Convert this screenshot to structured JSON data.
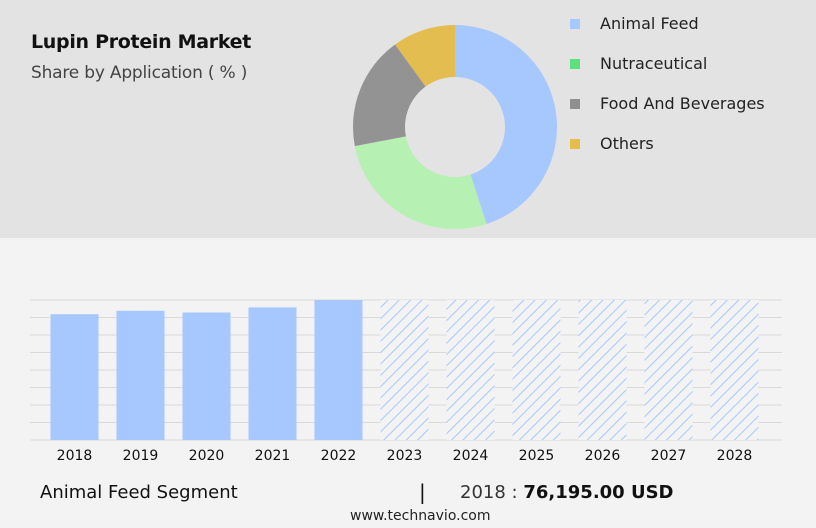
{
  "header": {
    "title": "Lupin Protein Market",
    "subtitle": "Share by Application ( % )"
  },
  "chart_data": [
    {
      "type": "pie",
      "style": "donut",
      "categories": [
        "Animal Feed",
        "Nutraceutical",
        "Food And Beverages",
        "Others"
      ],
      "values": [
        45,
        27,
        18,
        10
      ],
      "colors": [
        "#a7c7ff",
        "#b7f0b3",
        "#939393",
        "#e3bd4f"
      ],
      "legend_colors": [
        "#a7c7ff",
        "#5ee07e",
        "#8f8f8f",
        "#e6bd4a"
      ],
      "legend": "right"
    },
    {
      "type": "bar",
      "categories": [
        "2018",
        "2019",
        "2020",
        "2021",
        "2022",
        "2023",
        "2024",
        "2025",
        "2026",
        "2027",
        "2028"
      ],
      "values": [
        74,
        76,
        75,
        78,
        83,
        null,
        null,
        null,
        null,
        null,
        null
      ],
      "forecast_categories": [
        "2023",
        "2024",
        "2025",
        "2026",
        "2027",
        "2028"
      ],
      "ylim": [
        0,
        100
      ],
      "grid": true,
      "color": "#a7c7ff"
    }
  ],
  "footer": {
    "segment": "Animal Feed Segment",
    "separator": "|",
    "year": "2018",
    "colon": ":",
    "value": "76,195.00 USD",
    "site": "www.technavio.com"
  }
}
